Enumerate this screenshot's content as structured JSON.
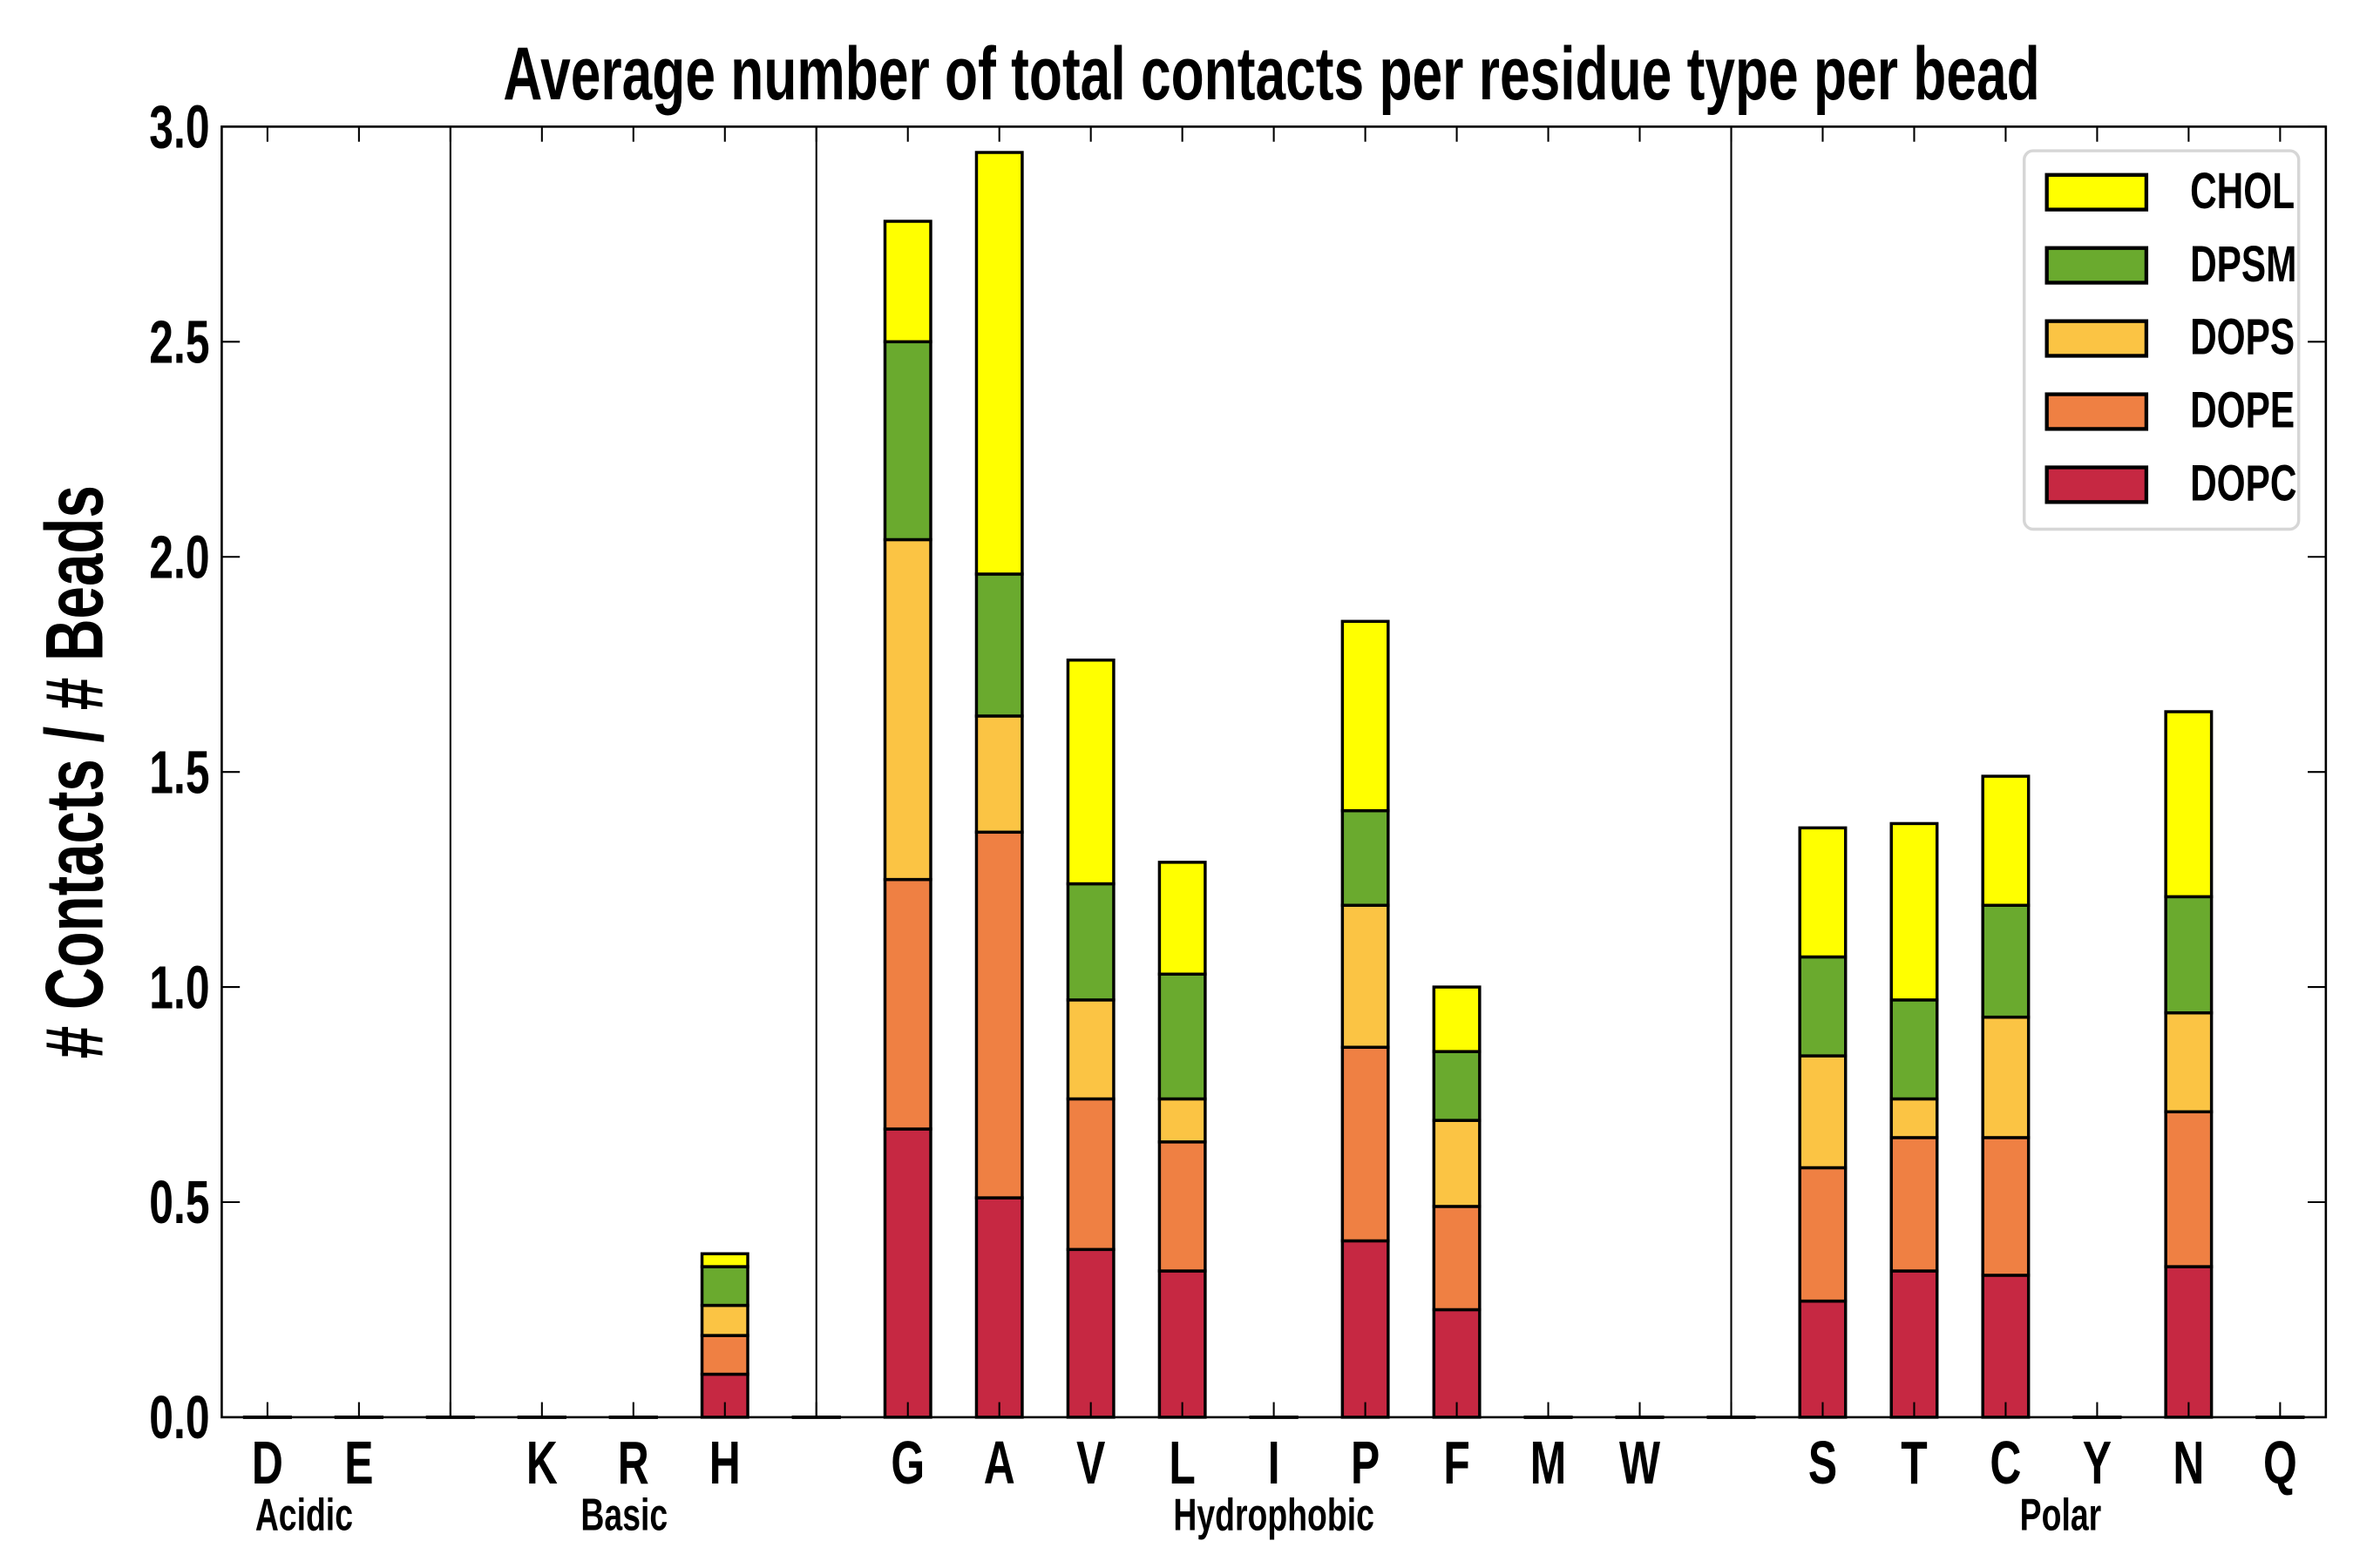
{
  "chart_data": {
    "type": "bar",
    "stacked": true,
    "title": "Average number of total contacts per residue type per bead",
    "xlabel": "",
    "ylabel": "# Contacts / # Beads",
    "ylim": [
      0,
      3.0
    ],
    "xlim": [
      -0.5,
      22.5
    ],
    "yticks": [
      "0.0",
      "0.5",
      "1.0",
      "1.5",
      "2.0",
      "2.5",
      "3.0"
    ],
    "slots": [
      "D",
      "E",
      "",
      "K",
      "R",
      "H",
      "",
      "G",
      "A",
      "V",
      "L",
      "I",
      "P",
      "F",
      "M",
      "W",
      "",
      "S",
      "T",
      "C",
      "Y",
      "N",
      "Q"
    ],
    "groups": [
      {
        "label": "Acidic",
        "center": 0.4
      },
      {
        "label": "Basic",
        "center": 3.9
      },
      {
        "label": "Hydrophobic",
        "center": 11
      },
      {
        "label": "Polar",
        "center": 19.6
      }
    ],
    "dividers": [
      2,
      6,
      16
    ],
    "legend_position": "top-right",
    "series": [
      {
        "name": "DOPC",
        "color": "#c62842",
        "values": [
          0,
          0,
          0,
          0,
          0,
          0.1,
          0,
          0.67,
          0.51,
          0.39,
          0.34,
          0,
          0.41,
          0.25,
          0,
          0,
          0,
          0.27,
          0.34,
          0.33,
          0,
          0.35,
          0
        ]
      },
      {
        "name": "DOPE",
        "color": "#ef8043",
        "values": [
          0,
          0,
          0,
          0,
          0,
          0.09,
          0,
          0.58,
          0.85,
          0.35,
          0.3,
          0,
          0.45,
          0.24,
          0,
          0,
          0,
          0.31,
          0.31,
          0.32,
          0,
          0.36,
          0
        ]
      },
      {
        "name": "DOPS",
        "color": "#fbc444",
        "values": [
          0,
          0,
          0,
          0,
          0,
          0.07,
          0,
          0.79,
          0.27,
          0.23,
          0.1,
          0,
          0.33,
          0.2,
          0,
          0,
          0,
          0.26,
          0.09,
          0.28,
          0,
          0.23,
          0
        ]
      },
      {
        "name": "DPSM",
        "color": "#6aaa2e",
        "values": [
          0,
          0,
          0,
          0,
          0,
          0.09,
          0,
          0.46,
          0.33,
          0.27,
          0.29,
          0,
          0.22,
          0.16,
          0,
          0,
          0,
          0.23,
          0.23,
          0.26,
          0,
          0.27,
          0
        ]
      },
      {
        "name": "CHOL",
        "color": "#ffff00",
        "values": [
          0,
          0,
          0,
          0,
          0,
          0.03,
          0,
          0.28,
          0.98,
          0.52,
          0.26,
          0,
          0.44,
          0.15,
          0,
          0,
          0,
          0.3,
          0.41,
          0.3,
          0,
          0.43,
          0
        ]
      }
    ]
  }
}
